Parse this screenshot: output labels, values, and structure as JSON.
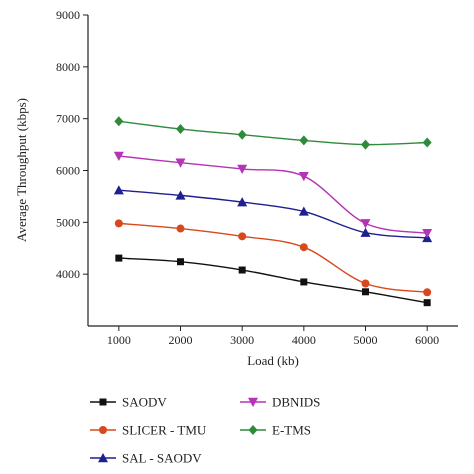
{
  "chart_data": {
    "type": "line",
    "title": "",
    "xlabel": "Load (kb)",
    "ylabel": "Average Throughput (kbps)",
    "x": [
      1000,
      2000,
      3000,
      4000,
      5000,
      6000
    ],
    "xticks": [
      "1000",
      "2000",
      "3000",
      "4000",
      "5000",
      "6000"
    ],
    "xlim": [
      500,
      6500
    ],
    "ylim": [
      3000,
      9000
    ],
    "yticks": [
      "4000",
      "5000",
      "6000",
      "7000",
      "8000",
      "9000"
    ],
    "grid": false,
    "legend_placement": "bottom",
    "series": [
      {
        "name": "SAODV",
        "color": "#111111",
        "marker": "square",
        "values": [
          4310,
          4240,
          4080,
          3850,
          3660,
          3450
        ]
      },
      {
        "name": "SLICER - TMU",
        "color": "#d9481c",
        "marker": "circle",
        "values": [
          4980,
          4880,
          4730,
          4520,
          3820,
          3650
        ]
      },
      {
        "name": "SAL - SAODV",
        "color": "#1f1f8f",
        "marker": "triangle-up",
        "values": [
          5620,
          5520,
          5390,
          5210,
          4800,
          4700
        ]
      },
      {
        "name": "DBNIDS",
        "color": "#b533b5",
        "marker": "triangle-down",
        "values": [
          6280,
          6150,
          6030,
          5890,
          4980,
          4790
        ]
      },
      {
        "name": "E-TMS",
        "color": "#2e8b3a",
        "marker": "diamond",
        "values": [
          6950,
          6800,
          6690,
          6580,
          6500,
          6540
        ]
      }
    ]
  }
}
